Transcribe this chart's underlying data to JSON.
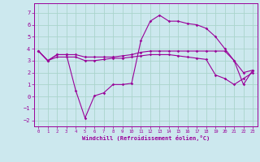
{
  "xlabel": "Windchill (Refroidissement éolien,°C)",
  "bg_color": "#cce8ee",
  "grid_color": "#aad4cc",
  "line_color": "#990099",
  "xlim": [
    -0.5,
    23.5
  ],
  "ylim": [
    -2.5,
    7.8
  ],
  "yticks": [
    -2,
    -1,
    0,
    1,
    2,
    3,
    4,
    5,
    6,
    7
  ],
  "xticks": [
    0,
    1,
    2,
    3,
    4,
    5,
    6,
    7,
    8,
    9,
    10,
    11,
    12,
    13,
    14,
    15,
    16,
    17,
    18,
    19,
    20,
    21,
    22,
    23
  ],
  "series1_x": [
    0,
    1,
    2,
    3,
    4,
    5,
    6,
    7,
    8,
    9,
    10,
    11,
    12,
    13,
    14,
    15,
    16,
    17,
    18,
    19,
    20,
    21,
    22,
    23
  ],
  "series1_y": [
    3.8,
    3.0,
    3.5,
    3.5,
    0.5,
    -1.8,
    0.05,
    0.3,
    1.0,
    1.0,
    1.1,
    4.7,
    6.3,
    6.8,
    6.3,
    6.3,
    6.1,
    6.0,
    5.7,
    5.0,
    4.0,
    3.0,
    1.0,
    2.2
  ],
  "series2_x": [
    0,
    1,
    2,
    3,
    4,
    5,
    6,
    7,
    8,
    9,
    10,
    11,
    12,
    13,
    14,
    15,
    16,
    17,
    18,
    19,
    20,
    21,
    22,
    23
  ],
  "series2_y": [
    3.8,
    3.0,
    3.5,
    3.5,
    3.5,
    3.3,
    3.3,
    3.3,
    3.3,
    3.4,
    3.5,
    3.7,
    3.8,
    3.8,
    3.8,
    3.8,
    3.8,
    3.8,
    3.8,
    3.8,
    3.8,
    3.0,
    2.0,
    2.2
  ],
  "series3_x": [
    0,
    1,
    2,
    3,
    4,
    5,
    6,
    7,
    8,
    9,
    10,
    11,
    12,
    13,
    14,
    15,
    16,
    17,
    18,
    19,
    20,
    21,
    22,
    23
  ],
  "series3_y": [
    3.8,
    3.0,
    3.3,
    3.3,
    3.3,
    3.0,
    3.0,
    3.1,
    3.2,
    3.2,
    3.3,
    3.4,
    3.5,
    3.5,
    3.5,
    3.4,
    3.3,
    3.2,
    3.1,
    1.8,
    1.5,
    1.0,
    1.5,
    2.0
  ]
}
